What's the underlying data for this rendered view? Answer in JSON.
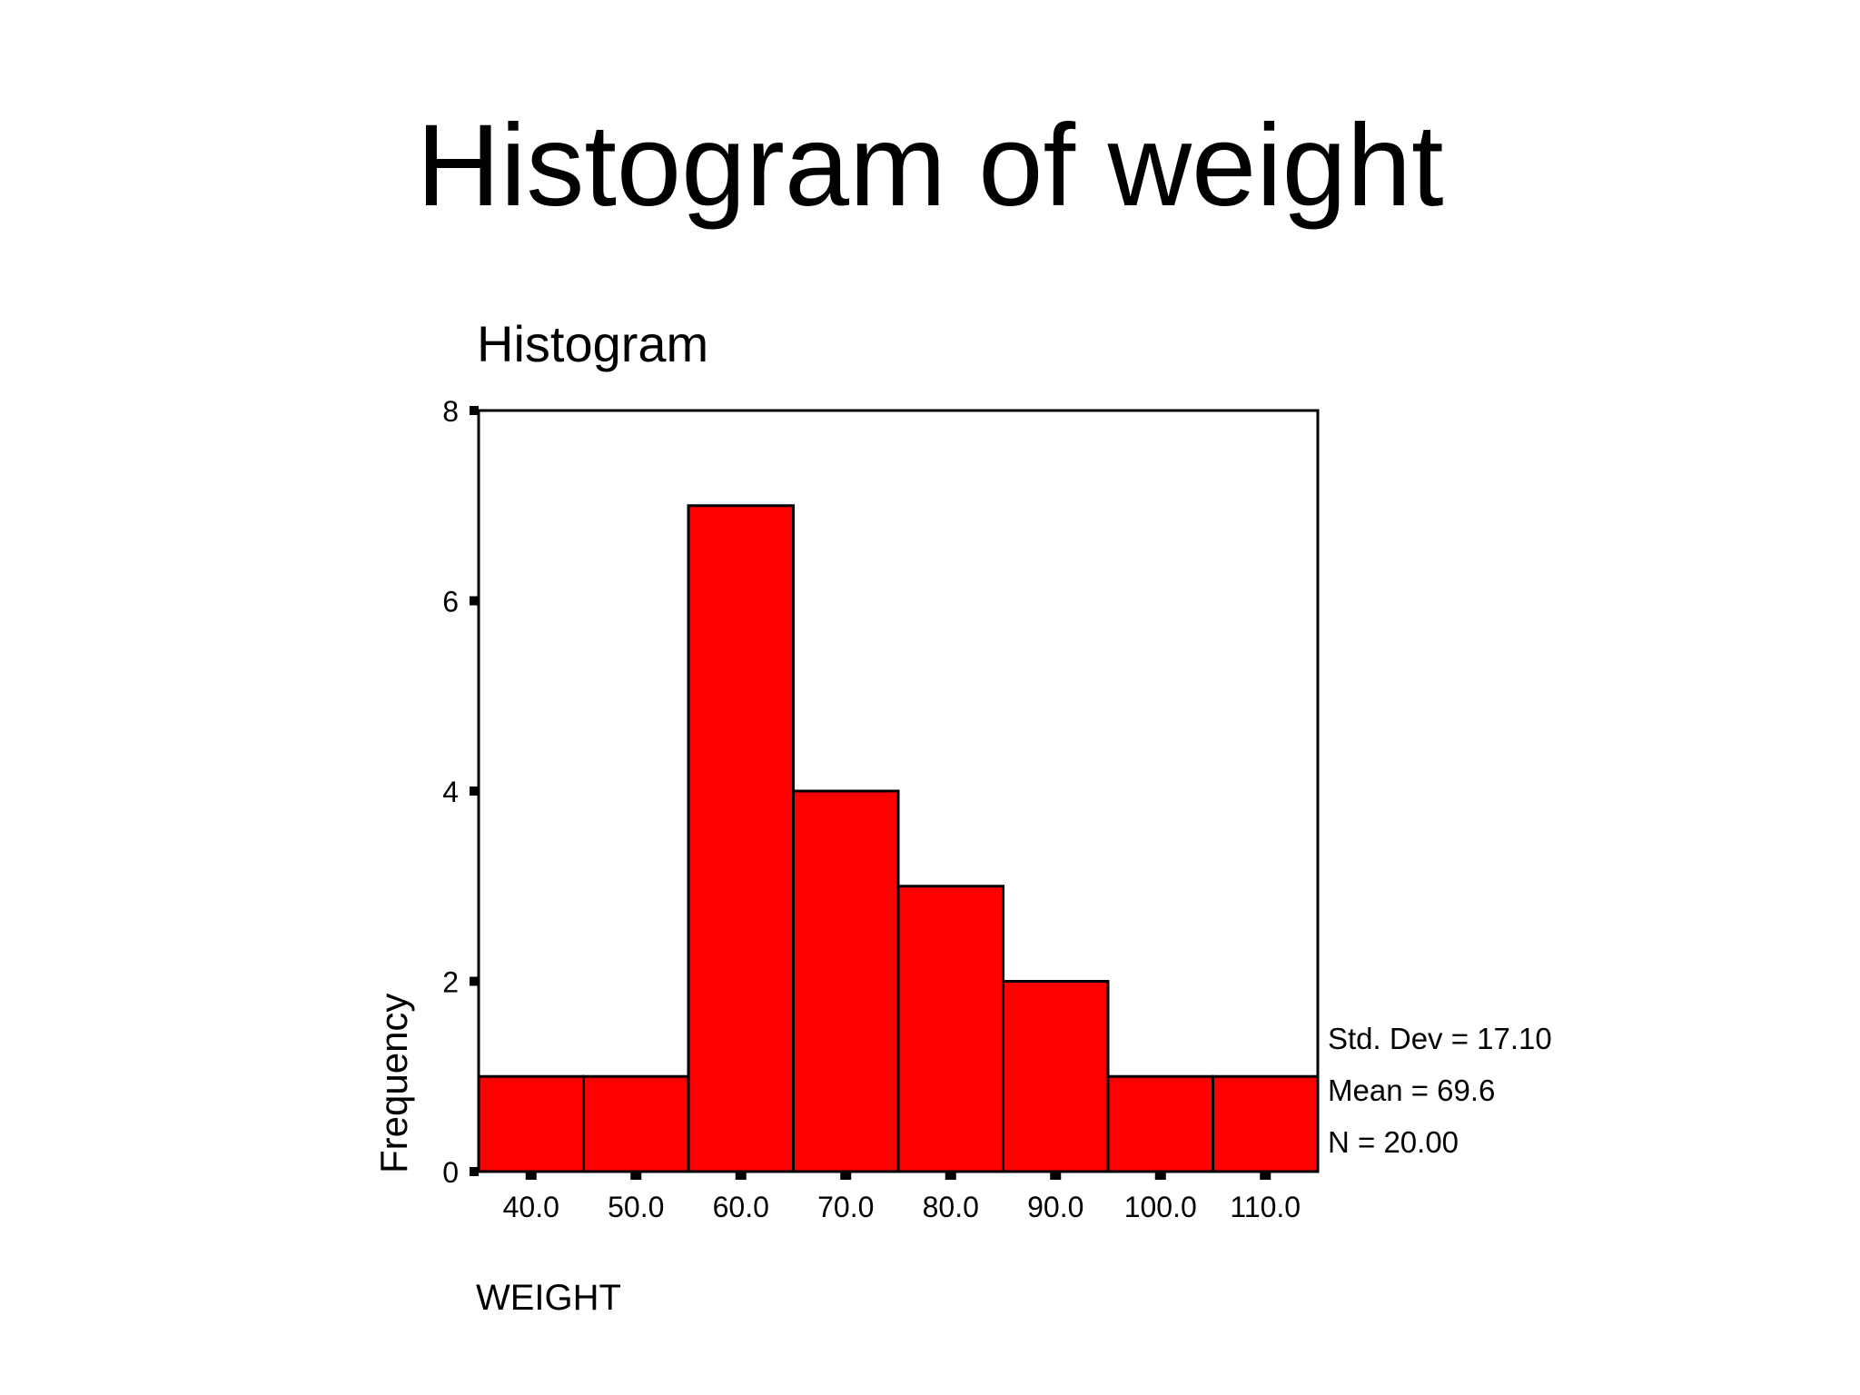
{
  "slide_title": "Histogram of weight",
  "chart_data": {
    "type": "bar",
    "title": "Histogram",
    "xlabel": "WEIGHT",
    "ylabel": "Frequency",
    "categories": [
      "40.0",
      "50.0",
      "60.0",
      "70.0",
      "80.0",
      "90.0",
      "100.0",
      "110.0"
    ],
    "values": [
      1,
      1,
      7,
      4,
      3,
      2,
      1,
      1
    ],
    "ylim": [
      0,
      8
    ],
    "yticks": [
      0,
      2,
      4,
      6,
      8
    ],
    "grid": false,
    "bar_color": "#ff0000",
    "stats": [
      "Std. Dev = 17.10",
      "Mean = 69.6",
      "N = 20.00"
    ]
  }
}
